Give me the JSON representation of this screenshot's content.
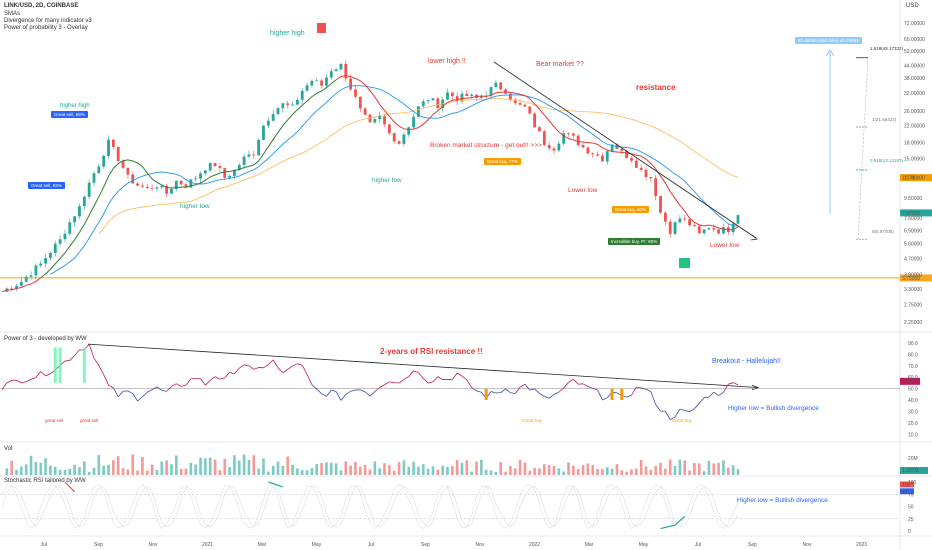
{
  "header": {
    "symbol": "LINK/USD, 2D, COINBASE",
    "ind1": "SMAs",
    "ind2": "Divergence for many indicator v3",
    "ind3": "Power of probability 3 - Overlay",
    "currency": "USD"
  },
  "panes": {
    "rsi_title": "Power of 3 - developed by WW",
    "vol_title": "Vol",
    "stoch_title": "Stochastic RSI tailored by WW"
  },
  "annotations": {
    "higher_high_1": "higher high",
    "higher_high_2": "higher high",
    "lower_high": "lower high !!",
    "bear_market": "Bear market ??",
    "resistance": "resistance",
    "broken_structure": "Broken market structure - get out!! >>>",
    "higher_low_1": "higher low",
    "higher_low_2": "higher low",
    "lower_low_1": "Lower low",
    "lower_low_2": "Lower low",
    "rsi_resistance": "2-years of RSI resistance !!",
    "breakout": "Breakout - Hallelujah!!",
    "bullish_div_1": "Higher low = Bullish divergence",
    "bullish_div_2": "Higher low = Bullish divergence",
    "great_sell_sm": "great sell",
    "great_sell_sm2": "great sell",
    "great_buy_sm": "Great buy",
    "great_buy_sm2": "Great buy"
  },
  "boxes": {
    "great_sell_88": "Great sell, 88%",
    "great_sell_83": "Great sell, 83%",
    "great_buy_77": "Great buy, 77%",
    "great_buy_80": "Great buy, 80%",
    "incredible_buy": "Incredible buy, Pr: 80%",
    "target": "40.45899 (550.84%) 40.45899"
  },
  "fib": {
    "f1618": "1.618(48.17332)",
    "f1": "1(21.56422)",
    "f0618": "0.618(13.12187)",
    "f05": "0(5.87408)"
  },
  "colors": {
    "up": "#26a69a",
    "down": "#ef5350",
    "sma_red": "#e53935",
    "sma_blue": "#2196f3",
    "sma_green": "#2e7d32",
    "sma_orange": "#ffb74d",
    "rsi_line": "#5e35b1",
    "support": "#f5a623",
    "ann_red": "#e53935",
    "ann_green": "#26a69a",
    "ann_blue": "#2962ff"
  },
  "chart_data": {
    "type": "candlestick",
    "title": "LINK/USD, 2D, COINBASE",
    "x_ticks": [
      "Jul",
      "Sep",
      "Nov",
      "2021",
      "Mar",
      "May",
      "Jul",
      "Sep",
      "Nov",
      "2022",
      "Mar",
      "May",
      "Jul",
      "Sep",
      "Nov",
      "2023"
    ],
    "price_ticks": [
      72.0,
      60.0,
      52.0,
      44.0,
      38.0,
      32.0,
      26.0,
      22.0,
      18.0,
      15.0,
      12.0,
      9.5,
      7.5,
      6.5,
      5.6,
      4.7,
      3.9,
      3.3,
      2.75,
      2.25
    ],
    "price_tick_labels": [
      "72.00000",
      "60.00000",
      "52.00000",
      "44.00000",
      "38.00000",
      "32.00000",
      "26.00000",
      "22.00000",
      "18.00000",
      "15.00000",
      "12.00000",
      "9.50000",
      "7.50000",
      "6.50000",
      "5.60000",
      "4.70000",
      "3.90000",
      "3.30000",
      "2.75000",
      "2.25000"
    ],
    "price_scale": "log",
    "price_path": [
      [
        0,
        3.2
      ],
      [
        4,
        3.6
      ],
      [
        8,
        4.4
      ],
      [
        12,
        5.8
      ],
      [
        16,
        8.5
      ],
      [
        20,
        14
      ],
      [
        22,
        18
      ],
      [
        24,
        15
      ],
      [
        26,
        12
      ],
      [
        28,
        11
      ],
      [
        30,
        10.5
      ],
      [
        32,
        11
      ],
      [
        34,
        10
      ],
      [
        36,
        11.5
      ],
      [
        38,
        11
      ],
      [
        40,
        12
      ],
      [
        42,
        13.5
      ],
      [
        44,
        14
      ],
      [
        46,
        12
      ],
      [
        48,
        13
      ],
      [
        50,
        15
      ],
      [
        52,
        16
      ],
      [
        54,
        22
      ],
      [
        56,
        26
      ],
      [
        58,
        28
      ],
      [
        60,
        27
      ],
      [
        62,
        33
      ],
      [
        64,
        37
      ],
      [
        66,
        35
      ],
      [
        68,
        42
      ],
      [
        70,
        44
      ],
      [
        72,
        34
      ],
      [
        74,
        26
      ],
      [
        76,
        22
      ],
      [
        78,
        24
      ],
      [
        80,
        20
      ],
      [
        82,
        18
      ],
      [
        84,
        22
      ],
      [
        86,
        27
      ],
      [
        88,
        30
      ],
      [
        90,
        28
      ],
      [
        92,
        32
      ],
      [
        94,
        30
      ],
      [
        96,
        31
      ],
      [
        98,
        30
      ],
      [
        100,
        32
      ],
      [
        102,
        35
      ],
      [
        104,
        33
      ],
      [
        106,
        28
      ],
      [
        108,
        27
      ],
      [
        110,
        22
      ],
      [
        112,
        18
      ],
      [
        114,
        17
      ],
      [
        116,
        20
      ],
      [
        118,
        19
      ],
      [
        120,
        17
      ],
      [
        122,
        16
      ],
      [
        124,
        15
      ],
      [
        126,
        18
      ],
      [
        128,
        16
      ],
      [
        130,
        15
      ],
      [
        132,
        13
      ],
      [
        134,
        12
      ],
      [
        136,
        8
      ],
      [
        138,
        6.5
      ],
      [
        140,
        7.5
      ],
      [
        142,
        7
      ],
      [
        144,
        6.2
      ],
      [
        146,
        6.8
      ],
      [
        148,
        6.5
      ],
      [
        150,
        6.6
      ],
      [
        152,
        7.97
      ]
    ],
    "support_level": 3.75,
    "support_label": "3.75000",
    "last_price_label": "7.97300",
    "rsi": {
      "ticks": [
        90.0,
        80.0,
        70.0,
        60.0,
        50.0,
        40.0,
        30.0,
        20.0,
        10.0
      ],
      "tick_labels": [
        "90.0",
        "80.0",
        "70.0",
        "60.0",
        "50.0",
        "40.0",
        "30.0",
        "20.0",
        "10.0"
      ],
      "last_label": "56.4",
      "path": [
        [
          0,
          52
        ],
        [
          4,
          58
        ],
        [
          8,
          62
        ],
        [
          12,
          70
        ],
        [
          16,
          84
        ],
        [
          18,
          89
        ],
        [
          20,
          70
        ],
        [
          22,
          52
        ],
        [
          24,
          44
        ],
        [
          26,
          47
        ],
        [
          28,
          42
        ],
        [
          30,
          48
        ],
        [
          32,
          50
        ],
        [
          34,
          46
        ],
        [
          36,
          52
        ],
        [
          38,
          55
        ],
        [
          40,
          60
        ],
        [
          42,
          54
        ],
        [
          44,
          62
        ],
        [
          46,
          57
        ],
        [
          48,
          66
        ],
        [
          50,
          72
        ],
        [
          52,
          64
        ],
        [
          54,
          70
        ],
        [
          56,
          74
        ],
        [
          58,
          62
        ],
        [
          60,
          71
        ],
        [
          62,
          69
        ],
        [
          64,
          52
        ],
        [
          66,
          45
        ],
        [
          68,
          47
        ],
        [
          70,
          42
        ],
        [
          72,
          48
        ],
        [
          74,
          51
        ],
        [
          76,
          45
        ],
        [
          78,
          53
        ],
        [
          80,
          58
        ],
        [
          82,
          55
        ],
        [
          84,
          63
        ],
        [
          86,
          66
        ],
        [
          88,
          57
        ],
        [
          90,
          60
        ],
        [
          92,
          58
        ],
        [
          94,
          63
        ],
        [
          96,
          55
        ],
        [
          98,
          48
        ],
        [
          100,
          44
        ],
        [
          102,
          46
        ],
        [
          104,
          50
        ],
        [
          106,
          48
        ],
        [
          108,
          53
        ],
        [
          110,
          48
        ],
        [
          112,
          41
        ],
        [
          114,
          44
        ],
        [
          116,
          49
        ],
        [
          118,
          57
        ],
        [
          120,
          52
        ],
        [
          122,
          49
        ],
        [
          124,
          43
        ],
        [
          126,
          46
        ],
        [
          128,
          41
        ],
        [
          130,
          47
        ],
        [
          132,
          52
        ],
        [
          134,
          45
        ],
        [
          136,
          32
        ],
        [
          138,
          25
        ],
        [
          140,
          30
        ],
        [
          142,
          28
        ],
        [
          144,
          37
        ],
        [
          146,
          45
        ],
        [
          148,
          46
        ],
        [
          150,
          52
        ],
        [
          152,
          56.4
        ]
      ]
    },
    "volume": {
      "ticks": [
        20000000
      ],
      "tick_labels": [
        "20M"
      ],
      "last_label": "1.207M"
    },
    "stoch": {
      "ticks": [
        100,
        75,
        50,
        25,
        0
      ],
      "tick_labels": [
        "100",
        "75",
        "50",
        "25",
        "0"
      ],
      "k_last_label": "81",
      "d_last_label": "100"
    }
  }
}
